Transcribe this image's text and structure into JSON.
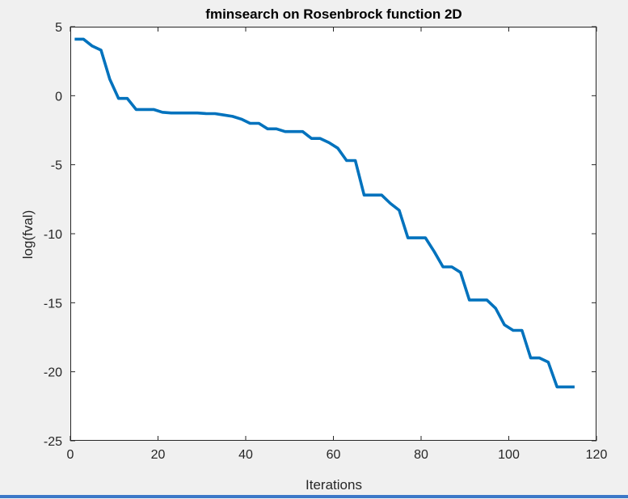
{
  "figure": {
    "background": "#f0f0f0",
    "axes_background": "#ffffff",
    "line_color": "#0072bd"
  },
  "chart_data": {
    "type": "line",
    "title": "fminsearch on Rosenbrock function 2D",
    "xlabel": "Iterations",
    "ylabel": "log(fval)",
    "xlim": [
      0,
      120
    ],
    "ylim": [
      -25,
      5
    ],
    "xticks": [
      0,
      20,
      40,
      60,
      80,
      100,
      120
    ],
    "yticks": [
      5,
      0,
      -5,
      -10,
      -15,
      -20,
      -25
    ],
    "grid": false,
    "series": [
      {
        "x": [
          1,
          3,
          5,
          7,
          9,
          11,
          13,
          15,
          17,
          19,
          21,
          23,
          25,
          27,
          29,
          31,
          33,
          35,
          37,
          39,
          41,
          43,
          45,
          47,
          49,
          51,
          53,
          55,
          57,
          59,
          61,
          63,
          65,
          67,
          69,
          71,
          73,
          75,
          77,
          79,
          81,
          83,
          85,
          87,
          89,
          91,
          93,
          95,
          97,
          99,
          101,
          103,
          105,
          107,
          109,
          111,
          113,
          115
        ],
        "y": [
          4.1,
          4.1,
          3.6,
          3.3,
          1.2,
          -0.2,
          -0.2,
          -1.0,
          -1.0,
          -1.0,
          -1.2,
          -1.25,
          -1.25,
          -1.25,
          -1.25,
          -1.3,
          -1.3,
          -1.4,
          -1.5,
          -1.7,
          -2.0,
          -2.0,
          -2.4,
          -2.4,
          -2.6,
          -2.6,
          -2.6,
          -3.1,
          -3.1,
          -3.4,
          -3.8,
          -4.7,
          -4.7,
          -7.2,
          -7.2,
          -7.2,
          -7.8,
          -8.3,
          -10.3,
          -10.3,
          -10.3,
          -11.3,
          -12.4,
          -12.4,
          -12.8,
          -14.8,
          -14.8,
          -14.8,
          -15.4,
          -16.6,
          -17.0,
          -17.0,
          -19.0,
          -19.0,
          -19.3,
          -21.1,
          -21.1,
          -21.1
        ]
      }
    ]
  }
}
